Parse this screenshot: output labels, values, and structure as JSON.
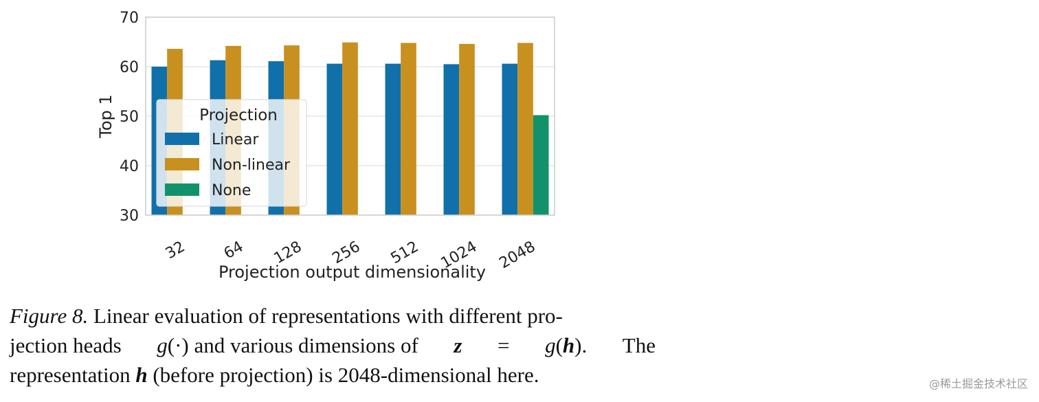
{
  "chart_data": {
    "type": "bar",
    "title": "",
    "xlabel": "Projection output dimensionality",
    "ylabel": "Top 1",
    "categories": [
      "32",
      "64",
      "128",
      "256",
      "512",
      "1024",
      "2048"
    ],
    "ylim": [
      30,
      70
    ],
    "yticks": [
      30,
      40,
      50,
      60,
      70
    ],
    "grid": true,
    "legend": {
      "title": "Projection",
      "placement": "center-left"
    },
    "series": [
      {
        "name": "Linear",
        "color": "#1170aa",
        "values": [
          60.0,
          61.3,
          61.1,
          60.6,
          60.6,
          60.5,
          60.6
        ]
      },
      {
        "name": "Non-linear",
        "color": "#c8901f",
        "values": [
          63.6,
          64.2,
          64.3,
          64.9,
          64.8,
          64.6,
          64.8
        ]
      },
      {
        "name": "None",
        "color": "#12926a",
        "values": [
          null,
          null,
          null,
          null,
          null,
          null,
          50.2
        ]
      }
    ]
  },
  "caption": {
    "label": "Figure 8.",
    "line1_rest": "Linear evaluation of representations with different pro-",
    "line2_a": "jection heads",
    "line2_g": "g",
    "line2_b": "(·) and various dimensions of",
    "line2_z": "z",
    "line2_eq": "=",
    "line2_g2": "g",
    "line2_paren_open": "(",
    "line2_h": "h",
    "line2_paren_close": ").",
    "line2_end": "The",
    "line3_a": "representation",
    "line3_h": "h",
    "line3_b": "(before projection) is 2048-dimensional here."
  },
  "watermark": "@稀土掘金技术社区"
}
